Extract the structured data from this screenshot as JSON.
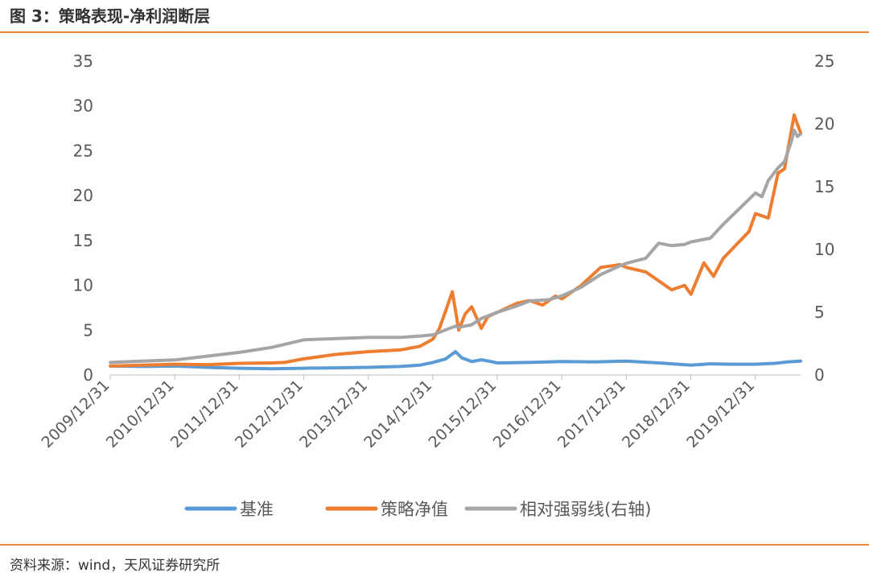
{
  "figure": {
    "title": "图 3：策略表现-净利润断层",
    "source": "资料来源：wind，天风证券研究所"
  },
  "chart_data": {
    "type": "line",
    "title": "图 3：策略表现-净利润断层",
    "xlabel": "",
    "ylabel": "",
    "x_tick_labels": [
      "2009/12/31",
      "2010/12/31",
      "2011/12/31",
      "2012/12/31",
      "2013/12/31",
      "2014/12/31",
      "2015/12/31",
      "2016/12/31",
      "2017/12/31",
      "2018/12/31",
      "2019/12/31"
    ],
    "ylim_left": [
      0,
      35
    ],
    "yticks_left": [
      0,
      5,
      10,
      15,
      20,
      25,
      30,
      35
    ],
    "ylim_right": [
      0,
      25
    ],
    "yticks_right": [
      0,
      5,
      10,
      15,
      20,
      25
    ],
    "xlim": [
      2009.997,
      2020.7
    ],
    "grid": false,
    "legend_position": "bottom",
    "series": [
      {
        "name": "基准",
        "axis": "left",
        "color": "#5b9bd5",
        "points": [
          [
            2010.0,
            1.0
          ],
          [
            2010.5,
            0.95
          ],
          [
            2011.0,
            1.0
          ],
          [
            2011.5,
            0.85
          ],
          [
            2012.0,
            0.75
          ],
          [
            2012.5,
            0.7
          ],
          [
            2013.0,
            0.75
          ],
          [
            2013.5,
            0.8
          ],
          [
            2014.0,
            0.85
          ],
          [
            2014.5,
            0.95
          ],
          [
            2014.8,
            1.1
          ],
          [
            2015.0,
            1.4
          ],
          [
            2015.2,
            1.8
          ],
          [
            2015.35,
            2.6
          ],
          [
            2015.45,
            1.9
          ],
          [
            2015.6,
            1.5
          ],
          [
            2015.75,
            1.7
          ],
          [
            2015.9,
            1.5
          ],
          [
            2016.0,
            1.35
          ],
          [
            2016.5,
            1.4
          ],
          [
            2017.0,
            1.5
          ],
          [
            2017.5,
            1.45
          ],
          [
            2018.0,
            1.55
          ],
          [
            2018.5,
            1.35
          ],
          [
            2018.8,
            1.2
          ],
          [
            2019.0,
            1.1
          ],
          [
            2019.3,
            1.25
          ],
          [
            2019.6,
            1.2
          ],
          [
            2020.0,
            1.2
          ],
          [
            2020.3,
            1.3
          ],
          [
            2020.5,
            1.45
          ],
          [
            2020.7,
            1.55
          ]
        ]
      },
      {
        "name": "策略净值",
        "axis": "left",
        "color": "#ed7d31",
        "points": [
          [
            2010.0,
            1.0
          ],
          [
            2010.5,
            1.1
          ],
          [
            2011.0,
            1.2
          ],
          [
            2011.5,
            1.15
          ],
          [
            2012.0,
            1.3
          ],
          [
            2012.5,
            1.35
          ],
          [
            2012.7,
            1.4
          ],
          [
            2013.0,
            1.8
          ],
          [
            2013.5,
            2.3
          ],
          [
            2014.0,
            2.6
          ],
          [
            2014.5,
            2.8
          ],
          [
            2014.8,
            3.2
          ],
          [
            2015.0,
            4.0
          ],
          [
            2015.1,
            5.2
          ],
          [
            2015.2,
            7.2
          ],
          [
            2015.3,
            9.3
          ],
          [
            2015.35,
            7.2
          ],
          [
            2015.4,
            5.0
          ],
          [
            2015.5,
            6.8
          ],
          [
            2015.6,
            7.6
          ],
          [
            2015.7,
            6.0
          ],
          [
            2015.75,
            5.2
          ],
          [
            2015.85,
            6.5
          ],
          [
            2016.0,
            7.0
          ],
          [
            2016.3,
            8.0
          ],
          [
            2016.5,
            8.3
          ],
          [
            2016.7,
            7.8
          ],
          [
            2016.9,
            8.8
          ],
          [
            2017.0,
            8.5
          ],
          [
            2017.3,
            10.0
          ],
          [
            2017.6,
            12.0
          ],
          [
            2017.9,
            12.3
          ],
          [
            2018.0,
            12.0
          ],
          [
            2018.3,
            11.5
          ],
          [
            2018.5,
            10.5
          ],
          [
            2018.7,
            9.5
          ],
          [
            2018.9,
            10.0
          ],
          [
            2019.0,
            9.0
          ],
          [
            2019.2,
            12.5
          ],
          [
            2019.35,
            11.0
          ],
          [
            2019.5,
            13.0
          ],
          [
            2019.7,
            14.5
          ],
          [
            2019.9,
            16.0
          ],
          [
            2020.0,
            18.0
          ],
          [
            2020.2,
            17.5
          ],
          [
            2020.35,
            22.5
          ],
          [
            2020.45,
            23.0
          ],
          [
            2020.55,
            27.0
          ],
          [
            2020.6,
            29.0
          ],
          [
            2020.65,
            28.0
          ],
          [
            2020.7,
            27.0
          ]
        ]
      },
      {
        "name": "相对强弱线(右轴)",
        "axis": "right",
        "color": "#a5a5a5",
        "points": [
          [
            2010.0,
            1.0
          ],
          [
            2010.5,
            1.1
          ],
          [
            2011.0,
            1.2
          ],
          [
            2011.5,
            1.5
          ],
          [
            2012.0,
            1.8
          ],
          [
            2012.5,
            2.2
          ],
          [
            2013.0,
            2.8
          ],
          [
            2013.5,
            2.9
          ],
          [
            2014.0,
            3.0
          ],
          [
            2014.5,
            3.0
          ],
          [
            2014.8,
            3.1
          ],
          [
            2015.0,
            3.2
          ],
          [
            2015.2,
            3.6
          ],
          [
            2015.35,
            3.9
          ],
          [
            2015.4,
            3.8
          ],
          [
            2015.6,
            4.0
          ],
          [
            2015.75,
            4.5
          ],
          [
            2016.0,
            5.0
          ],
          [
            2016.3,
            5.5
          ],
          [
            2016.5,
            5.9
          ],
          [
            2016.8,
            6.0
          ],
          [
            2017.0,
            6.3
          ],
          [
            2017.3,
            7.0
          ],
          [
            2017.6,
            8.0
          ],
          [
            2017.9,
            8.7
          ],
          [
            2018.0,
            8.9
          ],
          [
            2018.3,
            9.3
          ],
          [
            2018.5,
            10.5
          ],
          [
            2018.7,
            10.3
          ],
          [
            2018.9,
            10.4
          ],
          [
            2019.0,
            10.6
          ],
          [
            2019.3,
            10.9
          ],
          [
            2019.5,
            12.0
          ],
          [
            2019.8,
            13.5
          ],
          [
            2020.0,
            14.5
          ],
          [
            2020.1,
            14.2
          ],
          [
            2020.2,
            15.5
          ],
          [
            2020.35,
            16.5
          ],
          [
            2020.45,
            17.0
          ],
          [
            2020.55,
            18.5
          ],
          [
            2020.6,
            19.5
          ],
          [
            2020.65,
            19.0
          ],
          [
            2020.7,
            19.2
          ]
        ]
      }
    ]
  }
}
